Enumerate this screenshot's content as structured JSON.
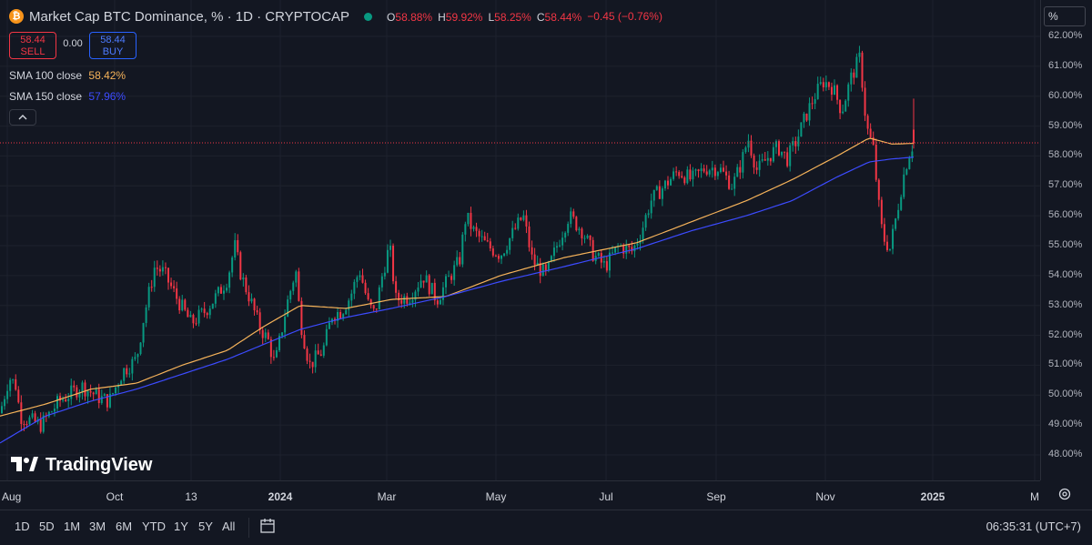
{
  "header": {
    "symbol_title": "Market Cap BTC Dominance, % · 1D · CRYPTOCAP",
    "coin_icon": "bitcoin-icon",
    "ohlc": [
      {
        "key": "O",
        "value": "58.88%"
      },
      {
        "key": "H",
        "value": "59.92%"
      },
      {
        "key": "L",
        "value": "58.25%"
      },
      {
        "key": "C",
        "value": "58.44%"
      }
    ],
    "change": "−0.45 (−0.76%)"
  },
  "trade": {
    "sell_price": "58.44",
    "sell_label": "SELL",
    "spread": "0.00",
    "buy_price": "58.44",
    "buy_label": "BUY"
  },
  "indicators": [
    {
      "name": "SMA 100 close",
      "value": "58.42%",
      "color": "#f6b35a"
    },
    {
      "name": "SMA 150 close",
      "value": "57.96%",
      "color": "#3c4bff"
    }
  ],
  "watermark": "TradingView",
  "price_scale": {
    "unit_button": "%",
    "labels": [
      "62.00%",
      "61.00%",
      "60.00%",
      "59.00%",
      "58.00%",
      "57.00%",
      "56.00%",
      "55.00%",
      "54.00%",
      "53.00%",
      "52.00%",
      "51.00%",
      "50.00%",
      "49.00%",
      "48.00%"
    ]
  },
  "time_scale": {
    "labels": [
      "Aug",
      "Oct",
      "13",
      "2024",
      "Mar",
      "May",
      "Jul",
      "Sep",
      "Nov",
      "2025",
      "M"
    ],
    "bold_labels": [
      "2024",
      "2025"
    ]
  },
  "bottom_bar": {
    "ranges": [
      "1D",
      "5D",
      "1M",
      "3M",
      "6M",
      "YTD",
      "1Y",
      "5Y",
      "All"
    ],
    "clock": "06:35:31 (UTC+7)"
  },
  "colors": {
    "up": "#089981",
    "down": "#f23645",
    "sma100": "#f6b35a",
    "sma150": "#3c4bff",
    "background": "#131722",
    "grid": "#1e222d"
  },
  "chart_data": {
    "type": "candlestick",
    "ylim": [
      47.6,
      62.2
    ],
    "grid": true,
    "current_price_line": 58.44,
    "price_keypoints": [
      [
        0,
        49.4
      ],
      [
        10,
        50.6
      ],
      [
        18,
        50.3
      ],
      [
        22,
        49.3
      ],
      [
        45,
        49.0
      ],
      [
        65,
        49.8
      ],
      [
        90,
        50.3
      ],
      [
        110,
        49.9
      ],
      [
        120,
        49.8
      ],
      [
        135,
        50.8
      ],
      [
        150,
        51.2
      ],
      [
        158,
        52.6
      ],
      [
        170,
        54.3
      ],
      [
        180,
        54.1
      ],
      [
        195,
        53.2
      ],
      [
        210,
        52.4
      ],
      [
        225,
        52.8
      ],
      [
        240,
        53.4
      ],
      [
        250,
        53.9
      ],
      [
        258,
        55.0
      ],
      [
        265,
        54.0
      ],
      [
        275,
        53.2
      ],
      [
        285,
        52.3
      ],
      [
        295,
        51.8
      ],
      [
        302,
        51.0
      ],
      [
        315,
        53.0
      ],
      [
        325,
        54.2
      ],
      [
        330,
        52.5
      ],
      [
        340,
        51.0
      ],
      [
        355,
        51.5
      ],
      [
        365,
        52.7
      ],
      [
        375,
        52.8
      ],
      [
        385,
        53.3
      ],
      [
        395,
        54.2
      ],
      [
        405,
        53.0
      ],
      [
        412,
        52.7
      ],
      [
        420,
        54.0
      ],
      [
        428,
        55.0
      ],
      [
        435,
        53.2
      ],
      [
        450,
        53.3
      ],
      [
        465,
        54.0
      ],
      [
        480,
        53.2
      ],
      [
        495,
        54.0
      ],
      [
        505,
        54.5
      ],
      [
        512,
        56.0
      ],
      [
        520,
        55.5
      ],
      [
        535,
        55.0
      ],
      [
        550,
        54.7
      ],
      [
        565,
        55.5
      ],
      [
        575,
        56.0
      ],
      [
        585,
        54.5
      ],
      [
        600,
        54.0
      ],
      [
        612,
        55.0
      ],
      [
        625,
        56.0
      ],
      [
        640,
        55.5
      ],
      [
        652,
        54.7
      ],
      [
        665,
        54.3
      ],
      [
        680,
        55.0
      ],
      [
        695,
        54.8
      ],
      [
        705,
        55.5
      ],
      [
        715,
        56.5
      ],
      [
        730,
        57.0
      ],
      [
        745,
        57.5
      ],
      [
        760,
        57.2
      ],
      [
        775,
        57.6
      ],
      [
        790,
        57.6
      ],
      [
        805,
        57.0
      ],
      [
        815,
        57.8
      ],
      [
        822,
        58.6
      ],
      [
        832,
        57.5
      ],
      [
        845,
        58.0
      ],
      [
        855,
        58.3
      ],
      [
        865,
        57.9
      ],
      [
        875,
        58.5
      ],
      [
        885,
        59.3
      ],
      [
        895,
        60.0
      ],
      [
        905,
        60.5
      ],
      [
        915,
        60.3
      ],
      [
        925,
        59.5
      ],
      [
        935,
        60.6
      ],
      [
        945,
        61.3
      ],
      [
        952,
        59.0
      ],
      [
        960,
        58.2
      ],
      [
        965,
        56.5
      ],
      [
        970,
        55.3
      ],
      [
        978,
        54.9
      ],
      [
        985,
        56.0
      ],
      [
        992,
        57.2
      ],
      [
        998,
        58.0
      ],
      [
        1004,
        58.44
      ]
    ],
    "sma100": [
      [
        0,
        49.3
      ],
      [
        50,
        49.7
      ],
      [
        100,
        50.2
      ],
      [
        150,
        50.4
      ],
      [
        200,
        51.0
      ],
      [
        250,
        51.5
      ],
      [
        290,
        52.3
      ],
      [
        330,
        53.0
      ],
      [
        380,
        52.9
      ],
      [
        430,
        53.2
      ],
      [
        490,
        53.3
      ],
      [
        550,
        54.0
      ],
      [
        620,
        54.6
      ],
      [
        700,
        55.1
      ],
      [
        760,
        55.8
      ],
      [
        820,
        56.5
      ],
      [
        870,
        57.2
      ],
      [
        920,
        58.0
      ],
      [
        955,
        58.6
      ],
      [
        980,
        58.4
      ],
      [
        1004,
        58.42
      ]
    ],
    "sma150": [
      [
        0,
        48.4
      ],
      [
        50,
        49.3
      ],
      [
        100,
        49.8
      ],
      [
        150,
        50.2
      ],
      [
        200,
        50.7
      ],
      [
        250,
        51.2
      ],
      [
        290,
        51.7
      ],
      [
        330,
        52.2
      ],
      [
        380,
        52.6
      ],
      [
        430,
        52.9
      ],
      [
        490,
        53.3
      ],
      [
        550,
        53.8
      ],
      [
        620,
        54.3
      ],
      [
        700,
        54.9
      ],
      [
        760,
        55.5
      ],
      [
        820,
        56.0
      ],
      [
        870,
        56.5
      ],
      [
        920,
        57.3
      ],
      [
        955,
        57.8
      ],
      [
        980,
        57.9
      ],
      [
        1004,
        57.96
      ]
    ]
  }
}
